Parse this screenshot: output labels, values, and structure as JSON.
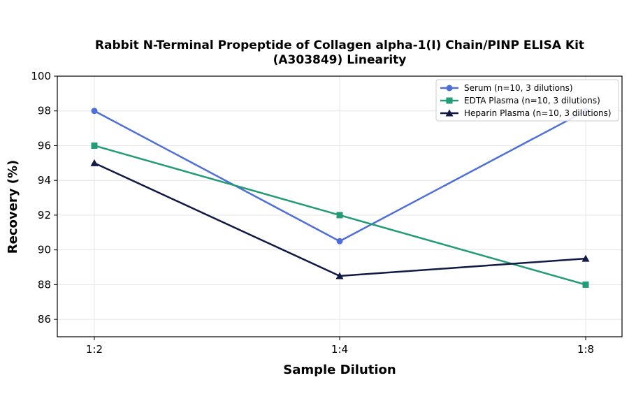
{
  "chart_data": {
    "type": "line",
    "title": "Rabbit N-Terminal Propeptide of Collagen alpha-1(I) Chain/PINP ELISA Kit",
    "subtitle": "(A303849) Linearity",
    "xlabel": "Sample Dilution",
    "ylabel": "Recovery (%)",
    "categories": [
      "1:2",
      "1:4",
      "1:8"
    ],
    "ylim": [
      85,
      100
    ],
    "yticks": [
      86,
      88,
      90,
      92,
      94,
      96,
      98,
      100
    ],
    "grid": true,
    "legend_position": "top-right",
    "series": [
      {
        "name": "Serum (n=10, 3 dilutions)",
        "values": [
          98,
          90.5,
          98
        ],
        "color": "#4f6fd6",
        "marker": "circle"
      },
      {
        "name": "EDTA Plasma (n=10, 3 dilutions)",
        "values": [
          96,
          92,
          88
        ],
        "color": "#239b76",
        "marker": "square"
      },
      {
        "name": "Heparin Plasma (n=10, 3 dilutions)",
        "values": [
          95,
          88.5,
          89.5
        ],
        "color": "#111a45",
        "marker": "triangle"
      }
    ]
  }
}
